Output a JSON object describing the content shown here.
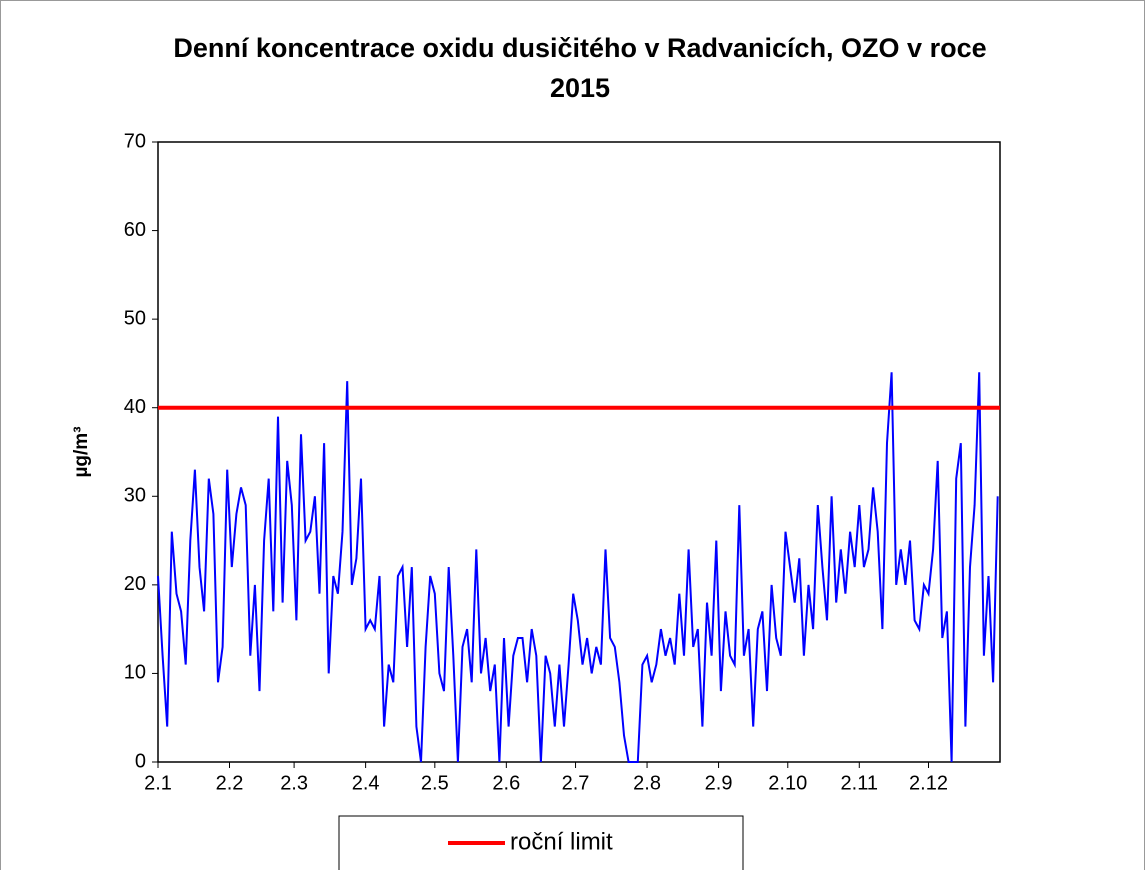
{
  "chart_data": {
    "type": "line",
    "title": "Denní koncentrace oxidu dusičitého v Radvanicích, OZO v roce 2015",
    "ylabel": "µg/m³",
    "xlim": [
      1,
      366
    ],
    "xticks": [
      {
        "value": 1,
        "label": "2.1"
      },
      {
        "value": 32,
        "label": "2.2"
      },
      {
        "value": 60,
        "label": "2.3"
      },
      {
        "value": 91,
        "label": "2.4"
      },
      {
        "value": 121,
        "label": "2.5"
      },
      {
        "value": 152,
        "label": "2.6"
      },
      {
        "value": 182,
        "label": "2.7"
      },
      {
        "value": 213,
        "label": "2.8"
      },
      {
        "value": 244,
        "label": "2.9"
      },
      {
        "value": 274,
        "label": "2.10"
      },
      {
        "value": 305,
        "label": "2.11"
      },
      {
        "value": 335,
        "label": "2.12"
      }
    ],
    "ylim": [
      0,
      70
    ],
    "yticks": [
      0,
      10,
      20,
      30,
      40,
      50,
      60,
      70
    ],
    "series": [
      {
        "color": "#0000ff",
        "x": [
          1,
          3,
          5,
          7,
          9,
          11,
          13,
          15,
          17,
          19,
          21,
          23,
          25,
          27,
          29,
          31,
          33,
          35,
          37,
          39,
          41,
          43,
          45,
          47,
          49,
          51,
          53,
          55,
          57,
          59,
          61,
          63,
          65,
          67,
          69,
          71,
          73,
          75,
          77,
          79,
          81,
          83,
          85,
          87,
          89,
          91,
          93,
          95,
          97,
          99,
          101,
          103,
          105,
          107,
          109,
          111,
          113,
          115,
          117,
          119,
          121,
          123,
          125,
          127,
          129,
          131,
          133,
          135,
          137,
          139,
          141,
          143,
          145,
          147,
          149,
          151,
          153,
          155,
          157,
          159,
          161,
          163,
          165,
          167,
          169,
          171,
          173,
          175,
          177,
          179,
          181,
          183,
          185,
          187,
          189,
          191,
          193,
          195,
          197,
          199,
          201,
          203,
          205,
          207,
          209,
          211,
          213,
          215,
          217,
          219,
          221,
          223,
          225,
          227,
          229,
          231,
          233,
          235,
          237,
          239,
          241,
          243,
          245,
          247,
          249,
          251,
          253,
          255,
          257,
          259,
          261,
          263,
          265,
          267,
          269,
          271,
          273,
          275,
          277,
          279,
          281,
          283,
          285,
          287,
          289,
          291,
          293,
          295,
          297,
          299,
          301,
          303,
          305,
          307,
          309,
          311,
          313,
          315,
          317,
          319,
          321,
          323,
          325,
          327,
          329,
          331,
          333,
          335,
          337,
          339,
          341,
          343,
          345,
          347,
          349,
          351,
          353,
          355,
          357,
          359,
          361,
          363,
          365
        ],
        "values": [
          21,
          12,
          4,
          26,
          19,
          17,
          11,
          25,
          33,
          22,
          17,
          32,
          28,
          9,
          13,
          33,
          22,
          28,
          31,
          29,
          12,
          20,
          8,
          25,
          32,
          17,
          39,
          18,
          34,
          29,
          16,
          37,
          25,
          26,
          30,
          19,
          36,
          10,
          21,
          19,
          26,
          43,
          20,
          23,
          32,
          15,
          16,
          15,
          21,
          4,
          11,
          9,
          21,
          22,
          13,
          22,
          4,
          0,
          13,
          21,
          19,
          10,
          8,
          22,
          12,
          0,
          13,
          15,
          9,
          24,
          10,
          14,
          8,
          11,
          0,
          14,
          4,
          12,
          14,
          14,
          9,
          15,
          12,
          0,
          12,
          10,
          4,
          11,
          4,
          11,
          19,
          16,
          11,
          14,
          10,
          13,
          11,
          24,
          14,
          13,
          9,
          3,
          0,
          0,
          0,
          11,
          12,
          9,
          11,
          15,
          12,
          14,
          11,
          19,
          12,
          24,
          13,
          15,
          4,
          18,
          12,
          25,
          8,
          17,
          12,
          11,
          29,
          12,
          15,
          4,
          15,
          17,
          8,
          20,
          14,
          12,
          26,
          22,
          18,
          23,
          12,
          20,
          15,
          29,
          22,
          16,
          30,
          18,
          24,
          19,
          26,
          22,
          29,
          22,
          24,
          31,
          26,
          15,
          36,
          44,
          20,
          24,
          20,
          25,
          16,
          15,
          20,
          19,
          24,
          34,
          14,
          17,
          0,
          32,
          36,
          4,
          22,
          29,
          44,
          12,
          21,
          9,
          30
        ]
      }
    ],
    "reference_line": {
      "name": "roční limit",
      "value": 40,
      "color": "#ff0000"
    }
  }
}
